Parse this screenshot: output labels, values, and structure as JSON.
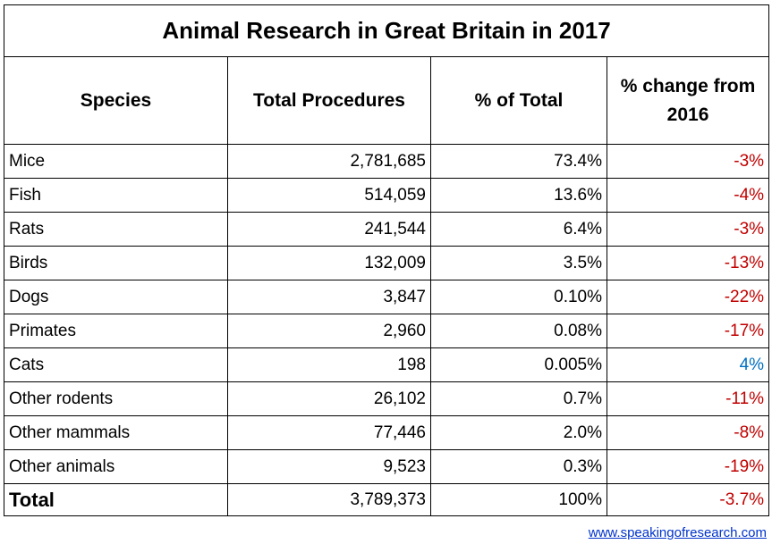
{
  "title": "Animal Research in Great Britain in 2017",
  "table": {
    "header": [
      "Species",
      "Total Procedures",
      "% of Total",
      "% change from 2016"
    ],
    "rows": [
      [
        "Mice",
        "2,781,685",
        "73.4%",
        "-3%"
      ],
      [
        "Fish",
        "514,059",
        "13.6%",
        "-4%"
      ],
      [
        "Rats",
        "241,544",
        "6.4%",
        "-3%"
      ],
      [
        "Birds",
        "132,009",
        "3.5%",
        "-13%"
      ],
      [
        "Dogs",
        "3,847",
        "0.10%",
        "-22%"
      ],
      [
        "Primates",
        "2,960",
        "0.08%",
        "-17%"
      ],
      [
        "Cats",
        "198",
        "0.005%",
        "4%"
      ],
      [
        "Other rodents",
        "26,102",
        "0.7%",
        "-11%"
      ],
      [
        "Other mammals",
        "77,446",
        "2.0%",
        "-8%"
      ],
      [
        "Other animals",
        "9,523",
        "0.3%",
        "-19%"
      ]
    ],
    "total": [
      "Total",
      "3,789,373",
      "100%",
      "-3.7%"
    ],
    "change_colors": {
      "decrease": "#c00000",
      "increase": "#0070c0"
    }
  },
  "footer": {
    "link": "www.speakingofresearch.com"
  }
}
